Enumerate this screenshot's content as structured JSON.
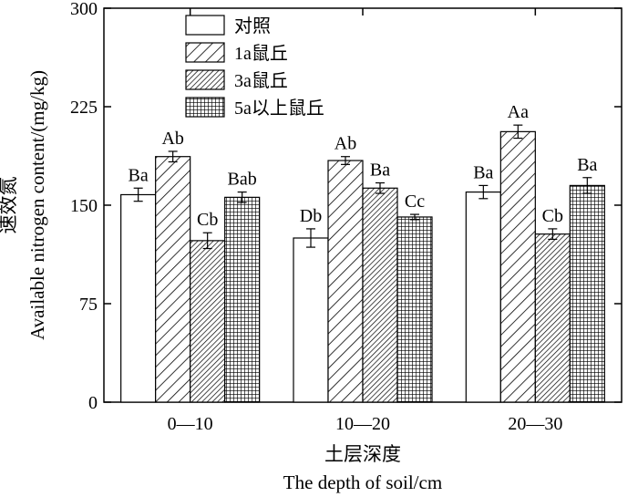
{
  "chart_data": {
    "type": "bar",
    "categories": [
      "0—10",
      "10—20",
      "20—30"
    ],
    "series": [
      {
        "name": "对照",
        "pattern": "none",
        "values": [
          158,
          125,
          160
        ],
        "errors": [
          5,
          7,
          5
        ],
        "labels": [
          "Ba",
          "Db",
          "Ba"
        ]
      },
      {
        "name": "1a鼠丘",
        "pattern": "diagonal-hatch",
        "values": [
          187,
          184,
          206
        ],
        "errors": [
          4,
          3,
          5
        ],
        "labels": [
          "Ab",
          "Ab",
          "Aa"
        ]
      },
      {
        "name": "3a鼠丘",
        "pattern": "dense-diagonal-hatch",
        "values": [
          123,
          163,
          128
        ],
        "errors": [
          6,
          4,
          4
        ],
        "labels": [
          "Cb",
          "Ba",
          "Cb"
        ]
      },
      {
        "name": "5a以上鼠丘",
        "pattern": "grid",
        "values": [
          156,
          141,
          165
        ],
        "errors": [
          4,
          2,
          6
        ],
        "labels": [
          "Bab",
          "Cc",
          "Ba"
        ]
      }
    ],
    "ylim": [
      0,
      300
    ],
    "yticks": [
      0,
      75,
      150,
      225,
      300
    ],
    "ylabel_cn": "速效氮",
    "ylabel_en": "Available nitrogen content/(mg/kg)",
    "xlabel_cn": "土层深度",
    "xlabel_en": "The depth of soil/cm",
    "legend_position": "top-left",
    "grid": false,
    "colors": {
      "stroke": "#000000",
      "background": "#ffffff"
    }
  }
}
